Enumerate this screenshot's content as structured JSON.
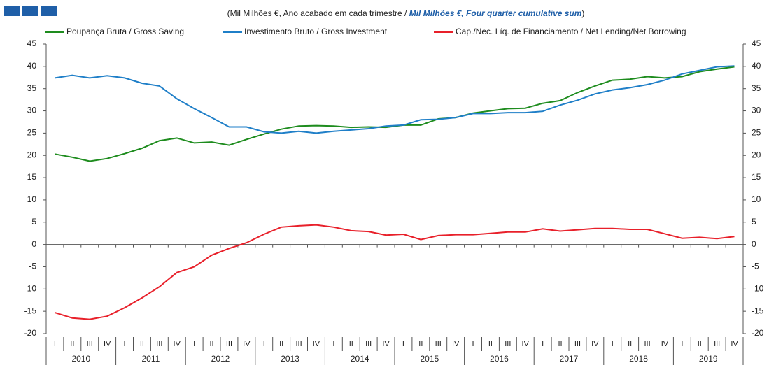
{
  "chart_data": {
    "type": "line",
    "title": [
      "(Mil Milhões €, Ano acabado  em cada trimestre / ",
      "Mil Milhões €, Four quarter cumulative sum",
      ")"
    ],
    "categories": [
      "I",
      "II",
      "III",
      "IV",
      "I",
      "II",
      "III",
      "IV",
      "I",
      "II",
      "III",
      "IV",
      "I",
      "II",
      "III",
      "IV",
      "I",
      "II",
      "III",
      "IV",
      "I",
      "II",
      "III",
      "IV",
      "I",
      "II",
      "III",
      "IV",
      "I",
      "II",
      "III",
      "IV",
      "I",
      "II",
      "III",
      "IV",
      "I",
      "II",
      "III",
      "IV"
    ],
    "years": [
      "2010",
      "2011",
      "2012",
      "2013",
      "2014",
      "2015",
      "2016",
      "2017",
      "2018",
      "2019"
    ],
    "series": [
      {
        "name": "Poupança Bruta / Gross Saving",
        "color": "#1e8c1e",
        "values": [
          20.3,
          19.6,
          18.7,
          19.3,
          20.4,
          21.6,
          23.3,
          23.9,
          22.8,
          23.0,
          22.3,
          23.6,
          24.8,
          25.9,
          26.6,
          26.7,
          26.6,
          26.3,
          26.4,
          26.3,
          26.8,
          26.8,
          28.2,
          28.5,
          29.5,
          30.0,
          30.5,
          30.6,
          31.7,
          32.3,
          34.1,
          35.6,
          36.9,
          37.1,
          37.7,
          37.4,
          37.7,
          38.8,
          39.4,
          39.9
        ]
      },
      {
        "name": "Investimento Bruto / Gross Investment",
        "color": "#1f7fc8",
        "values": [
          37.4,
          38.0,
          37.4,
          37.9,
          37.4,
          36.2,
          35.6,
          32.7,
          30.5,
          28.5,
          26.4,
          26.4,
          25.3,
          25.0,
          25.4,
          25.0,
          25.4,
          25.7,
          26.0,
          26.6,
          26.8,
          28.0,
          28.1,
          28.5,
          29.4,
          29.4,
          29.6,
          29.6,
          29.9,
          31.3,
          32.4,
          33.8,
          34.7,
          35.2,
          35.9,
          36.9,
          38.3,
          39.1,
          39.9,
          40.1
        ]
      },
      {
        "name": "Cap./Nec. Líq. de Financiamento  / Net Lending/Net Borrowing",
        "color": "#e8202a",
        "values": [
          -15.3,
          -16.5,
          -16.8,
          -16.1,
          -14.2,
          -12.0,
          -9.5,
          -6.3,
          -5.0,
          -2.4,
          -0.9,
          0.4,
          2.3,
          3.9,
          4.2,
          4.4,
          3.9,
          3.1,
          2.9,
          2.1,
          2.3,
          1.1,
          2.0,
          2.2,
          2.2,
          2.5,
          2.8,
          2.8,
          3.5,
          3.0,
          3.3,
          3.6,
          3.6,
          3.4,
          3.4,
          2.4,
          1.4,
          1.6,
          1.3,
          1.8
        ]
      }
    ],
    "ylim": [
      -20,
      45
    ],
    "yticks": [
      -20,
      -15,
      -10,
      -5,
      0,
      5,
      10,
      15,
      20,
      25,
      30,
      35,
      40,
      45
    ],
    "y2lim": [
      -20,
      45
    ],
    "y2ticks": [
      -20,
      -15,
      -10,
      -5,
      0,
      5,
      10,
      15,
      20,
      25,
      30,
      35,
      40,
      45
    ]
  }
}
